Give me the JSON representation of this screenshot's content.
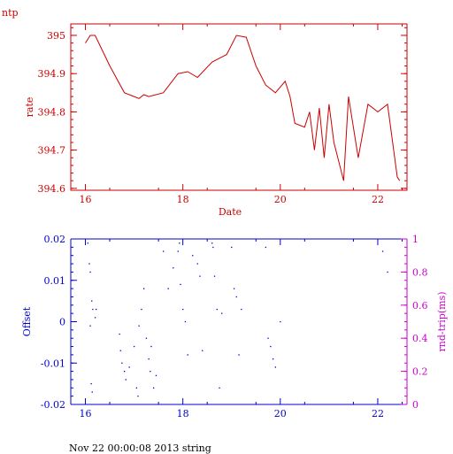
{
  "header": {
    "label": "ntp"
  },
  "footer": {
    "text": "Nov 22 00:00:08 2013 string"
  },
  "colors": {
    "top": "#cc0000",
    "bottom": "#0000cc",
    "right_axis": "#cc00cc",
    "grid": "#cc0000"
  },
  "chart_data": [
    {
      "type": "line",
      "xlabel": "Date",
      "ylabel": "rate",
      "xlim": [
        15.7,
        22.6
      ],
      "ylim": [
        394.595,
        395.03
      ],
      "x_ticks": [
        16,
        18,
        20,
        22
      ],
      "y_ticks": [
        394.6,
        394.7,
        394.8,
        394.9,
        395
      ],
      "y_tick_labels": [
        "394.6",
        "394.7",
        "394.8",
        "394.9",
        "395"
      ],
      "grid": false,
      "series": [
        {
          "x": [
            16.0,
            16.1,
            16.2,
            16.5,
            16.8,
            17.0,
            17.1,
            17.2,
            17.3,
            17.6,
            17.9,
            18.1,
            18.3,
            18.6,
            18.9,
            19.1,
            19.3,
            19.5,
            19.7,
            19.9,
            20.1,
            20.2,
            20.3,
            20.5,
            20.6,
            20.7,
            20.8,
            20.9,
            21.0,
            21.1,
            21.3,
            21.4,
            21.6,
            21.8,
            22.0,
            22.2,
            22.4,
            22.45
          ],
          "y": [
            394.98,
            395.0,
            395.0,
            394.92,
            394.85,
            394.84,
            394.835,
            394.845,
            394.84,
            394.85,
            394.9,
            394.905,
            394.89,
            394.93,
            394.95,
            395.0,
            394.995,
            394.92,
            394.87,
            394.85,
            394.88,
            394.84,
            394.77,
            394.76,
            394.8,
            394.7,
            394.81,
            394.68,
            394.82,
            394.72,
            394.62,
            394.84,
            394.68,
            394.82,
            394.8,
            394.82,
            394.63,
            394.62
          ]
        }
      ]
    },
    {
      "type": "scatter",
      "ylabel": "Offset",
      "y2label": "rnd-trip(ms)",
      "xlim": [
        15.7,
        22.6
      ],
      "ylim": [
        -0.02,
        0.02
      ],
      "y2lim": [
        0,
        1
      ],
      "x_ticks": [
        16,
        18,
        20,
        22
      ],
      "y_ticks": [
        -0.02,
        -0.01,
        0,
        0.01,
        0.02
      ],
      "y_tick_labels": [
        "-0.02",
        "-0.01",
        "0",
        "0.01",
        "0.02"
      ],
      "y2_ticks": [
        0,
        0.2,
        0.4,
        0.6,
        0.8,
        1
      ],
      "y2_tick_labels": [
        "0",
        "0.2",
        "0.4",
        "0.6",
        "0.8",
        "1"
      ],
      "grid": false,
      "series": [
        {
          "x": [
            16.05,
            16.08,
            16.1,
            16.13,
            16.15,
            16.1,
            16.12,
            16.14,
            16.2,
            16.22,
            16.7,
            16.72,
            16.75,
            16.8,
            16.83,
            16.9,
            17.0,
            17.05,
            17.08,
            17.1,
            17.15,
            17.2,
            17.25,
            17.3,
            17.33,
            17.35,
            17.4,
            17.45,
            17.6,
            17.7,
            17.8,
            17.9,
            17.93,
            17.95,
            18.0,
            18.05,
            18.1,
            18.2,
            18.3,
            18.35,
            18.4,
            18.6,
            18.62,
            18.65,
            18.7,
            18.75,
            18.8,
            19.0,
            19.05,
            19.1,
            19.15,
            19.2,
            19.7,
            19.75,
            19.8,
            19.85,
            19.9,
            20.0,
            22.1,
            22.2
          ],
          "y": [
            0.019,
            0.014,
            0.012,
            0.005,
            0.003,
            -0.001,
            -0.015,
            -0.017,
            0.001,
            0.003,
            -0.003,
            -0.007,
            -0.01,
            -0.012,
            -0.014,
            -0.011,
            -0.006,
            -0.016,
            -0.018,
            -0.001,
            0.003,
            0.008,
            -0.004,
            -0.009,
            -0.012,
            -0.006,
            -0.016,
            -0.013,
            0.017,
            0.008,
            0.013,
            0.017,
            0.019,
            0.009,
            0.003,
            0.0,
            -0.008,
            0.016,
            0.014,
            0.011,
            -0.007,
            0.019,
            0.018,
            0.011,
            0.003,
            -0.016,
            0.002,
            0.018,
            0.008,
            0.006,
            -0.008,
            0.003,
            0.018,
            -0.004,
            -0.006,
            -0.009,
            -0.011,
            0.0,
            0.017,
            0.012
          ]
        }
      ]
    }
  ]
}
